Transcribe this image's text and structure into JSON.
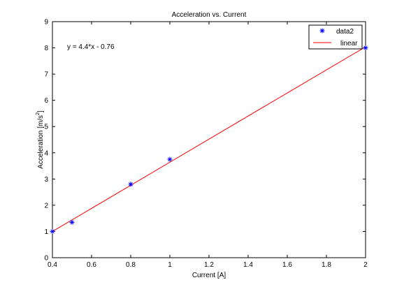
{
  "chart_data": {
    "type": "scatter",
    "title": "Acceleration vs. Current",
    "xlabel": "Current [A]",
    "ylabel_main": "Acceleration  [m/s",
    "ylabel_sup": "2",
    "ylabel_close": "]",
    "xlim": [
      0.4,
      2
    ],
    "ylim": [
      0,
      9
    ],
    "xticks": [
      0.4,
      0.6,
      0.8,
      1,
      1.2,
      1.4,
      1.6,
      1.8,
      2
    ],
    "xtick_labels": [
      "0.4",
      "0.6",
      "0.8",
      "1",
      "1.2",
      "1.4",
      "1.6",
      "1.8",
      "2"
    ],
    "yticks": [
      0,
      1,
      2,
      3,
      4,
      5,
      6,
      7,
      8,
      9
    ],
    "ytick_labels": [
      "0",
      "1",
      "2",
      "3",
      "4",
      "5",
      "6",
      "7",
      "8",
      "9"
    ],
    "grid": false,
    "legend_position": "top-right",
    "series": [
      {
        "name": "data2",
        "kind": "markers",
        "marker": "asterisk",
        "color": "#0000ff",
        "x": [
          0.4,
          0.5,
          0.8,
          1,
          2
        ],
        "y": [
          1,
          1.35,
          2.8,
          3.75,
          8
        ]
      },
      {
        "name": "linear",
        "kind": "line",
        "color": "#ff0000",
        "x": [
          0.4,
          2
        ],
        "y": [
          1,
          8.04
        ]
      }
    ],
    "annotation": "y = 4.4*x - 0.76"
  }
}
